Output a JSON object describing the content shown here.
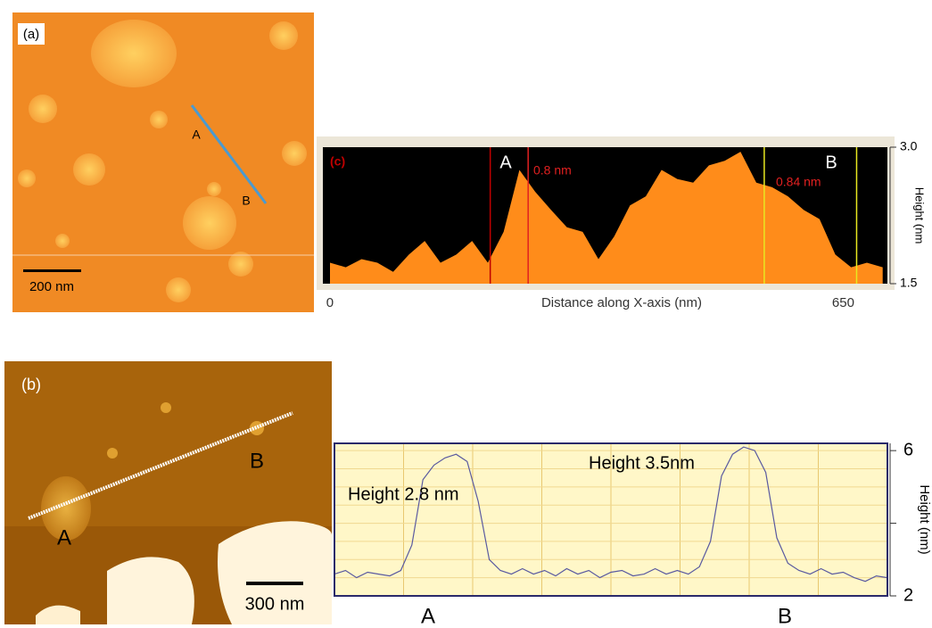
{
  "images": [
    {
      "label": "(a)",
      "scale_bar": "200 nm",
      "markers": [
        "A",
        "B"
      ]
    },
    {
      "label": "(b)",
      "scale_bar": "300 nm",
      "markers": [
        "A",
        "B"
      ]
    }
  ],
  "chart_data": [
    {
      "type": "area",
      "panel": "(c)",
      "xlabel": "Distance along X-axis (nm)",
      "ylabel": "Height (nm",
      "xlim": [
        -9,
        706
      ],
      "xticks": [
        0,
        650
      ],
      "ylim": [
        1.5,
        3.0
      ],
      "yticks": [
        1.5,
        {
          "value": 3.0,
          "label": "3.0"
        }
      ],
      "color": "#ff8c1a",
      "background": "#000000",
      "x": [
        0,
        20,
        40,
        60,
        80,
        100,
        120,
        140,
        160,
        180,
        200,
        220,
        240,
        260,
        280,
        300,
        320,
        340,
        360,
        380,
        400,
        420,
        440,
        460,
        480,
        500,
        520,
        540,
        560,
        580,
        600,
        620,
        640,
        660,
        680,
        700
      ],
      "values": [
        1.73,
        1.68,
        1.77,
        1.73,
        1.63,
        1.82,
        1.97,
        1.73,
        1.82,
        1.97,
        1.73,
        2.07,
        2.75,
        2.51,
        2.31,
        2.12,
        2.07,
        1.77,
        2.02,
        2.36,
        2.46,
        2.75,
        2.65,
        2.61,
        2.8,
        2.85,
        2.95,
        2.61,
        2.56,
        2.46,
        2.31,
        2.21,
        1.82,
        1.68,
        1.73,
        1.68
      ],
      "cursors": [
        {
          "x": 203,
          "color": "#c00000"
        },
        {
          "x": 251,
          "color": "#e02020"
        },
        {
          "x": 550,
          "color": "#e8e820"
        },
        {
          "x": 667,
          "color": "#e8e820"
        }
      ],
      "markers": [
        "A",
        "B"
      ],
      "annotations": [
        "0.8 nm",
        "0.84 nm"
      ]
    },
    {
      "type": "line",
      "ylabel": "Height (nm)",
      "xlim": [
        0,
        100
      ],
      "ylim": [
        2,
        6.2
      ],
      "yticks": [
        2,
        6
      ],
      "minor_yticks": [
        4
      ],
      "grid": true,
      "xgrid": [
        12.5,
        25,
        37.5,
        50,
        62.5,
        75,
        87.5
      ],
      "ygrid": [
        2.5,
        3,
        3.5,
        4,
        4.5,
        5,
        5.5,
        6
      ],
      "color": "#5a5aa0",
      "background": "#fff7c8",
      "x": [
        0,
        2,
        4,
        6,
        8,
        10,
        12,
        14,
        16,
        18,
        20,
        22,
        24,
        26,
        28,
        30,
        32,
        34,
        36,
        38,
        40,
        42,
        44,
        46,
        48,
        50,
        52,
        54,
        56,
        58,
        60,
        62,
        64,
        66,
        68,
        70,
        72,
        74,
        76,
        78,
        80,
        82,
        84,
        86,
        88,
        90,
        92,
        94,
        96,
        98,
        100
      ],
      "values": [
        2.6,
        2.7,
        2.5,
        2.65,
        2.6,
        2.55,
        2.7,
        3.4,
        5.2,
        5.6,
        5.8,
        5.9,
        5.7,
        4.6,
        3.0,
        2.7,
        2.6,
        2.75,
        2.6,
        2.7,
        2.55,
        2.75,
        2.6,
        2.7,
        2.5,
        2.65,
        2.7,
        2.55,
        2.6,
        2.75,
        2.6,
        2.7,
        2.6,
        2.8,
        3.5,
        5.3,
        5.9,
        6.1,
        6.0,
        5.4,
        3.6,
        2.9,
        2.7,
        2.6,
        2.75,
        2.6,
        2.65,
        2.5,
        2.4,
        2.55,
        2.5
      ],
      "markers": [
        "A",
        "B"
      ],
      "annotations": [
        "Height 2.8 nm",
        "Height 3.5nm"
      ]
    }
  ]
}
